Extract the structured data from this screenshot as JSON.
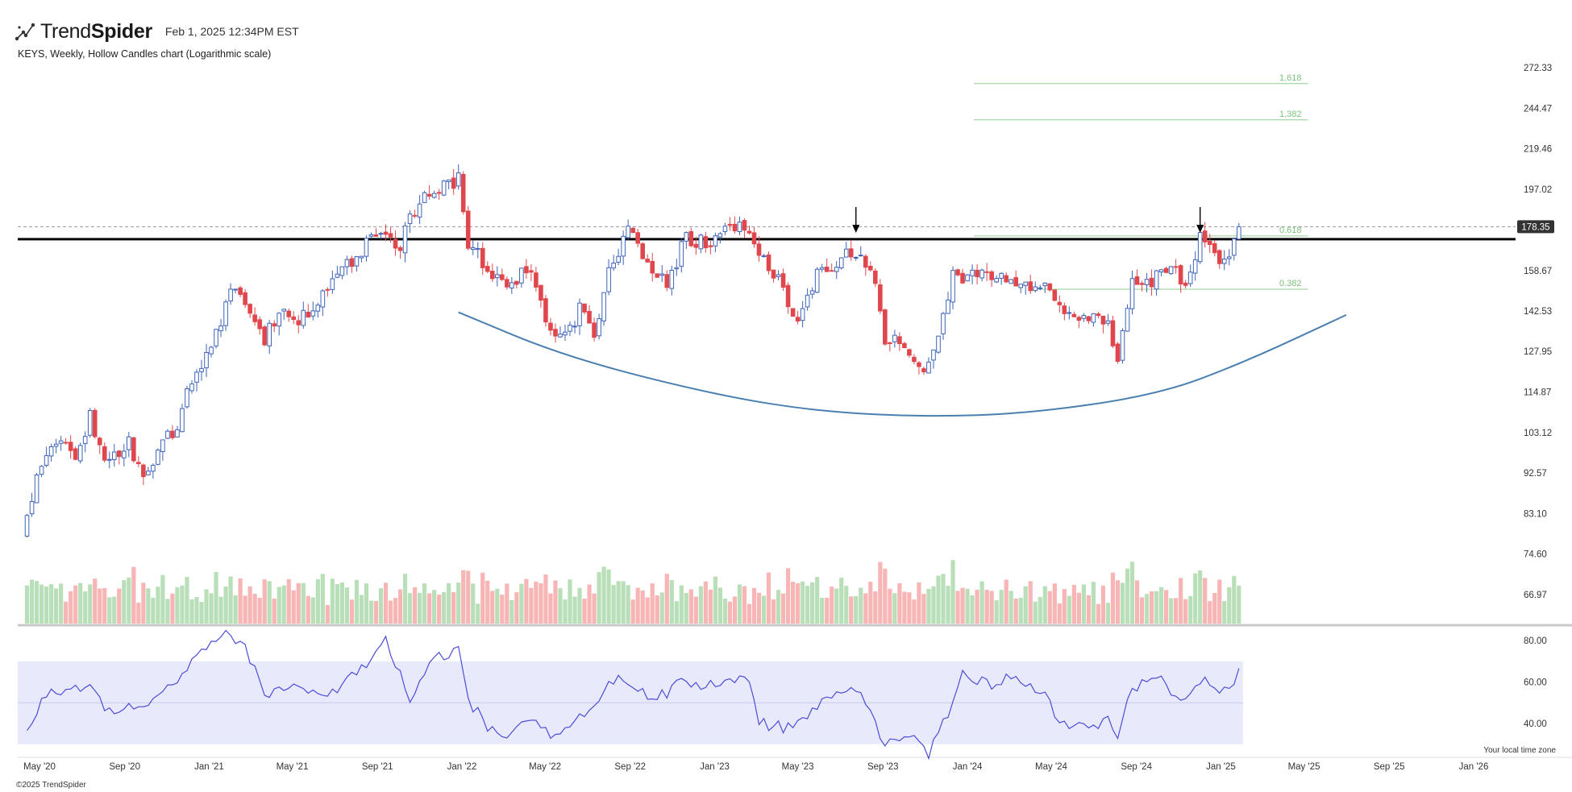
{
  "header": {
    "brand_light": "Trend",
    "brand_bold": "Spider",
    "timestamp": "Feb 1, 2025 12:34PM EST",
    "subtitle": "KEYS, Weekly, Hollow Candles chart (Logarithmic scale)"
  },
  "footer": {
    "copyright": "©2025 TrendSpider",
    "timezone_note": "Your local time zone"
  },
  "colors": {
    "up": "#3d63b8",
    "down": "#e0474c",
    "vol_up": "#b9dfb9",
    "vol_down": "#f7b5b5",
    "arc": "#4a7fb0",
    "rsi_line": "#4c4cd6",
    "rsi_band": "#e8eafb",
    "fib": "#8fce8f"
  },
  "chart_data": {
    "type": "candlestick",
    "symbol": "KEYS",
    "interval": "Weekly",
    "scale": "log",
    "price_axis_ticks": [
      272.33,
      244.47,
      219.46,
      197.02,
      178.35,
      158.67,
      142.53,
      127.95,
      114.87,
      103.12,
      92.57,
      83.1,
      74.6,
      66.97
    ],
    "time_axis_ticks": [
      "May '20",
      "Sep '20",
      "Jan '21",
      "May '21",
      "Sep '21",
      "Jan '22",
      "May '22",
      "Sep '22",
      "Jan '23",
      "May '23",
      "Sep '23",
      "Jan '24",
      "May '24",
      "Sep '24",
      "Jan '25",
      "May '25",
      "Sep '25",
      "Jan '26"
    ],
    "last_price": "178.35",
    "resistance_level": 172.5,
    "fib_levels": [
      {
        "label": "1.618",
        "price": 261
      },
      {
        "label": "1.382",
        "price": 237
      },
      {
        "label": "0.618",
        "price": 174
      },
      {
        "label": "0.382",
        "price": 151
      }
    ],
    "arrows": [
      {
        "date": "2023-07-24"
      },
      {
        "date": "2024-12-02"
      }
    ],
    "cup_arc": [
      [
        "2021-12-27",
        142
      ],
      [
        "2022-06-01",
        126
      ],
      [
        "2023-01-01",
        114
      ],
      [
        "2023-06-01",
        109
      ],
      [
        "2023-11-01",
        107.5
      ],
      [
        "2024-04-01",
        108.5
      ],
      [
        "2024-10-01",
        114
      ],
      [
        "2025-02-01",
        124
      ],
      [
        "2025-07-01",
        141
      ]
    ],
    "price_path": [
      [
        "2020-04-13",
        81
      ],
      [
        "2020-05-04",
        95
      ],
      [
        "2020-06-01",
        101
      ],
      [
        "2020-06-22",
        95
      ],
      [
        "2020-07-13",
        107
      ],
      [
        "2020-08-03",
        96
      ],
      [
        "2020-09-07",
        100
      ],
      [
        "2020-09-28",
        91
      ],
      [
        "2020-10-26",
        99
      ],
      [
        "2020-11-16",
        106
      ],
      [
        "2020-12-07",
        118
      ],
      [
        "2020-12-28",
        128
      ],
      [
        "2021-01-18",
        137
      ],
      [
        "2021-02-01",
        152
      ],
      [
        "2021-02-15",
        146
      ],
      [
        "2021-03-01",
        141
      ],
      [
        "2021-03-22",
        132
      ],
      [
        "2021-04-12",
        144
      ],
      [
        "2021-05-10",
        138
      ],
      [
        "2021-06-07",
        147
      ],
      [
        "2021-07-05",
        157
      ],
      [
        "2021-08-02",
        166
      ],
      [
        "2021-09-06",
        178
      ],
      [
        "2021-10-04",
        170
      ],
      [
        "2021-10-25",
        187
      ],
      [
        "2021-11-29",
        199
      ],
      [
        "2021-12-27",
        203
      ],
      [
        "2022-01-10",
        170
      ],
      [
        "2022-02-07",
        160
      ],
      [
        "2022-03-07",
        150
      ],
      [
        "2022-04-04",
        160
      ],
      [
        "2022-05-02",
        140
      ],
      [
        "2022-05-30",
        132
      ],
      [
        "2022-06-20",
        143
      ],
      [
        "2022-07-11",
        135
      ],
      [
        "2022-08-08",
        164
      ],
      [
        "2022-08-29",
        177
      ],
      [
        "2022-09-26",
        160
      ],
      [
        "2022-10-24",
        153
      ],
      [
        "2022-11-21",
        174
      ],
      [
        "2022-12-19",
        171
      ],
      [
        "2023-01-16",
        178
      ],
      [
        "2023-02-13",
        180
      ],
      [
        "2023-03-06",
        164
      ],
      [
        "2023-04-03",
        154
      ],
      [
        "2023-05-01",
        140
      ],
      [
        "2023-05-29",
        156
      ],
      [
        "2023-06-26",
        161
      ],
      [
        "2023-07-24",
        168
      ],
      [
        "2023-08-14",
        160
      ],
      [
        "2023-09-04",
        132
      ],
      [
        "2023-10-02",
        131
      ],
      [
        "2023-10-30",
        120
      ],
      [
        "2023-11-20",
        135
      ],
      [
        "2023-12-11",
        156
      ],
      [
        "2024-01-08",
        157
      ],
      [
        "2024-02-05",
        155
      ],
      [
        "2024-03-04",
        155
      ],
      [
        "2024-04-01",
        152
      ],
      [
        "2024-04-29",
        150
      ],
      [
        "2024-05-27",
        142
      ],
      [
        "2024-06-24",
        138
      ],
      [
        "2024-07-22",
        140
      ],
      [
        "2024-08-05",
        125
      ],
      [
        "2024-08-26",
        152
      ],
      [
        "2024-09-23",
        155
      ],
      [
        "2024-10-21",
        162
      ],
      [
        "2024-11-11",
        150
      ],
      [
        "2024-12-02",
        173
      ],
      [
        "2024-12-23",
        165
      ],
      [
        "2025-01-13",
        165
      ],
      [
        "2025-01-27",
        178
      ]
    ],
    "rsi": {
      "ticks": [
        80.0,
        60.0,
        40.0
      ],
      "ticks_text": [
        "80.00",
        "60.00",
        "40.00"
      ],
      "band": [
        30,
        70
      ],
      "path": [
        [
          "2020-04-13",
          35
        ],
        [
          "2020-05-11",
          55
        ],
        [
          "2020-07-13",
          58
        ],
        [
          "2020-08-10",
          45
        ],
        [
          "2020-09-28",
          48
        ],
        [
          "2020-11-09",
          58
        ],
        [
          "2020-12-14",
          74
        ],
        [
          "2021-01-25",
          84
        ],
        [
          "2021-02-22",
          78
        ],
        [
          "2021-03-22",
          54
        ],
        [
          "2021-05-03",
          60
        ],
        [
          "2021-06-07",
          52
        ],
        [
          "2021-07-26",
          62
        ],
        [
          "2021-09-13",
          80
        ],
        [
          "2021-10-18",
          53
        ],
        [
          "2021-11-22",
          72
        ],
        [
          "2021-12-27",
          75
        ],
        [
          "2022-01-10",
          52
        ],
        [
          "2022-02-07",
          38
        ],
        [
          "2022-03-14",
          35
        ],
        [
          "2022-04-11",
          41
        ],
        [
          "2022-05-09",
          34
        ],
        [
          "2022-06-20",
          42
        ],
        [
          "2022-08-08",
          62
        ],
        [
          "2022-09-05",
          60
        ],
        [
          "2022-10-03",
          50
        ],
        [
          "2022-11-14",
          60
        ],
        [
          "2023-01-02",
          58
        ],
        [
          "2023-02-20",
          62
        ],
        [
          "2023-03-06",
          40
        ],
        [
          "2023-04-10",
          38
        ],
        [
          "2023-05-08",
          42
        ],
        [
          "2023-06-12",
          54
        ],
        [
          "2023-07-24",
          58
        ],
        [
          "2023-09-04",
          30
        ],
        [
          "2023-10-16",
          33
        ],
        [
          "2023-11-06",
          26
        ],
        [
          "2023-12-04",
          45
        ],
        [
          "2023-12-25",
          64
        ],
        [
          "2024-02-05",
          58
        ],
        [
          "2024-03-04",
          62
        ],
        [
          "2024-04-15",
          56
        ],
        [
          "2024-05-13",
          42
        ],
        [
          "2024-06-17",
          38
        ],
        [
          "2024-07-22",
          42
        ],
        [
          "2024-08-05",
          31
        ],
        [
          "2024-08-26",
          58
        ],
        [
          "2024-10-07",
          60
        ],
        [
          "2024-11-11",
          50
        ],
        [
          "2024-12-02",
          62
        ],
        [
          "2024-12-30",
          55
        ],
        [
          "2025-01-27",
          64
        ]
      ]
    }
  }
}
